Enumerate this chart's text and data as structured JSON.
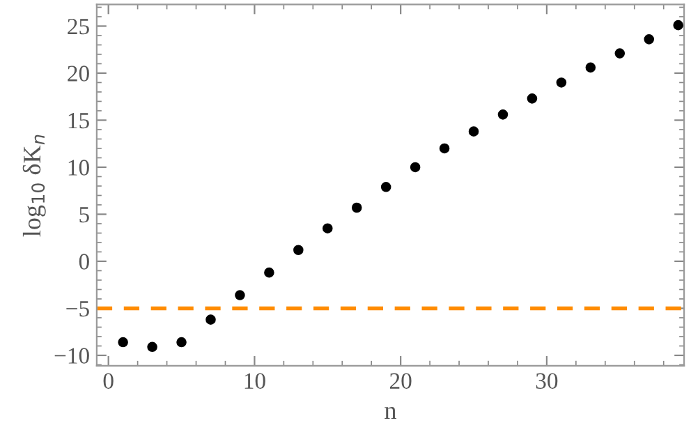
{
  "chart_data": {
    "type": "scatter",
    "xlabel": "n",
    "ylabel": "log$_{10}$ δK$_{n}$",
    "x": [
      1,
      3,
      5,
      7,
      9,
      11,
      13,
      15,
      17,
      19,
      21,
      23,
      25,
      27,
      29,
      31,
      33,
      35,
      37,
      39
    ],
    "series": [
      {
        "color": "#000000",
        "values": [
          -8.6,
          -9.1,
          -8.6,
          -6.2,
          -3.6,
          -1.2,
          1.2,
          3.5,
          5.7,
          7.9,
          10.0,
          12.0,
          13.8,
          15.6,
          17.3,
          19.0,
          20.6,
          22.1,
          23.6,
          25.1
        ]
      }
    ],
    "marker": "circle",
    "xlim": [
      -0.8,
      39.4
    ],
    "ylim": [
      -11.1,
      27.3
    ],
    "xticks": [
      0,
      10,
      20,
      30
    ],
    "yticks": [
      -10,
      -5,
      0,
      5,
      10,
      15,
      20,
      25
    ],
    "ref_lines": [
      {
        "axis": "y",
        "value": -5,
        "color": "#ff8c00",
        "line_style": "dashed"
      }
    ],
    "grid": false,
    "legend": false
  }
}
